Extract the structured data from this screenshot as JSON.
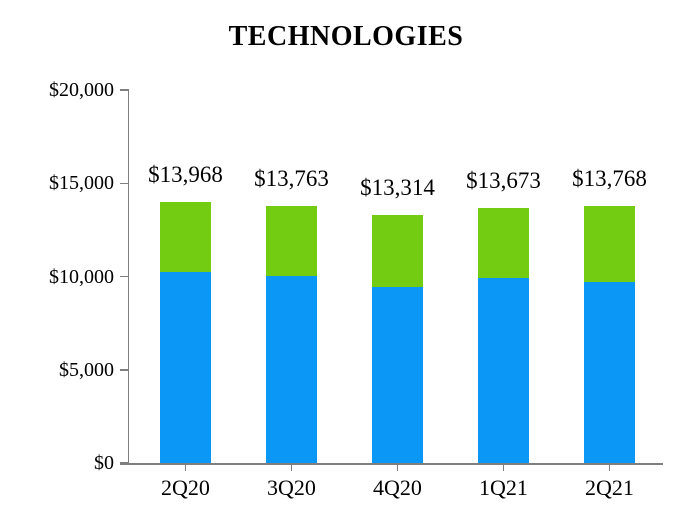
{
  "title": "TECHNOLOGIES",
  "colors": {
    "blue_segment": "#0A97F5",
    "green_segment": "#73CC12",
    "axis": "#7F7F7F",
    "text": "#000000",
    "background": "#FFFFFF"
  },
  "chart_data": {
    "type": "bar",
    "stacked": true,
    "title": "TECHNOLOGIES",
    "categories": [
      "2Q20",
      "3Q20",
      "4Q20",
      "1Q21",
      "2Q21"
    ],
    "series": [
      {
        "name": "blue-bottom-segment",
        "color": "#0A97F5",
        "values": [
          10225,
          10050,
          9425,
          9900,
          9690
        ]
      },
      {
        "name": "green-top-segment",
        "color": "#73CC12",
        "values": [
          3743,
          3713,
          3889,
          3773,
          4078
        ]
      }
    ],
    "totals": [
      13968,
      13763,
      13314,
      13673,
      13768
    ],
    "total_labels": [
      "$13,968",
      "$13,763",
      "$13,314",
      "$13,673",
      "$13,768"
    ],
    "xlabel": "",
    "ylabel": "",
    "ylim": [
      0,
      20000
    ],
    "ytick_interval": 5000,
    "ytick_labels": [
      "$0",
      "$5,000",
      "$10,000",
      "$15,000",
      "$20,000"
    ],
    "grid": false,
    "legend": "none",
    "note_on_series_values": "Only stacked totals are labeled in the image; per-segment values are estimated from bar pixel heights."
  }
}
